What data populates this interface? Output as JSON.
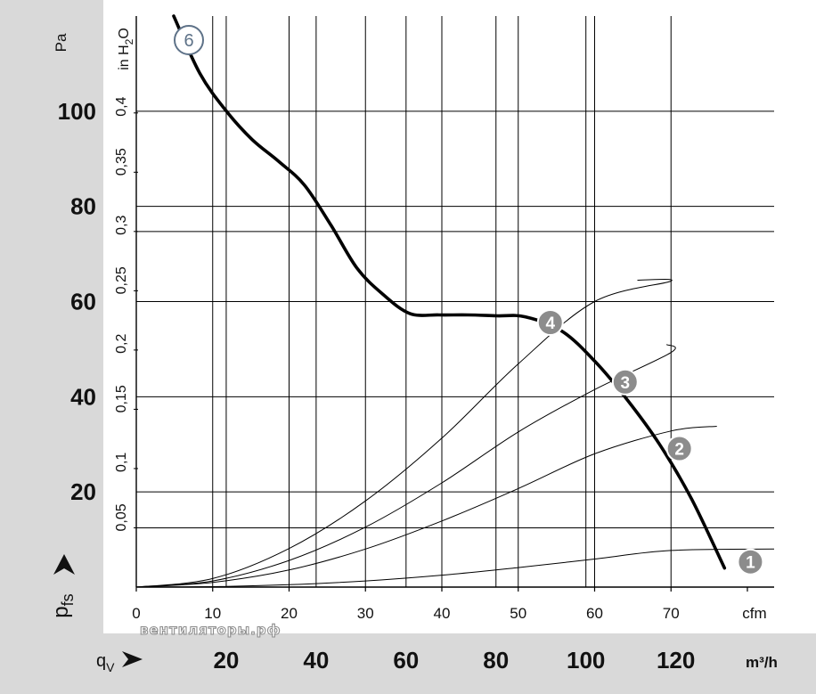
{
  "chart_data": {
    "type": "line",
    "x_axis": {
      "label": "cfm",
      "ticks": [
        "0",
        "10",
        "20",
        "30",
        "40",
        "50",
        "60",
        "70"
      ],
      "range": [
        0,
        83.5
      ],
      "secondary_label": "q_V",
      "secondary_unit": "m³/h",
      "secondary_ticks": [
        "20",
        "40",
        "60",
        "80",
        "100",
        "120"
      ]
    },
    "y_axis": {
      "label": "Pa",
      "unit": "in H₂O",
      "range": [
        0,
        120
      ],
      "ticks": [
        "20",
        "40",
        "60",
        "80",
        "100"
      ],
      "secondary_ticks": [
        "0,05",
        "0,1",
        "0,15",
        "0,2",
        "0,25",
        "0,3",
        "0,35",
        "0,4"
      ],
      "arrow_label": "p_fs"
    },
    "grid": true,
    "curve_label": "6",
    "fan_curve": {
      "x": [
        4.9,
        8.3,
        11.8,
        15.2,
        18.6,
        22.0,
        25.5,
        28.9,
        32.3,
        35.8,
        39.6,
        43.4,
        47.2,
        50.9,
        55.7,
        60.0,
        64.2,
        68.5,
        72.7,
        77.0
      ],
      "y": [
        120,
        108,
        100,
        94,
        89.5,
        84.5,
        76,
        67,
        61.5,
        57.5,
        57.2,
        57.2,
        57.0,
        56.8,
        53.8,
        47.5,
        39.5,
        30.0,
        18.5,
        4.0
      ]
    },
    "system_curves": [
      {
        "label": "1",
        "x": [
          0,
          10,
          20,
          30,
          40,
          50,
          60,
          70,
          83.5
        ],
        "y": [
          0,
          0.1,
          0.5,
          1.3,
          2.5,
          4.1,
          5.9,
          7.7,
          8.0
        ]
      },
      {
        "label": "2",
        "x": [
          0,
          10,
          20,
          30,
          40,
          50,
          60,
          70,
          76.0
        ],
        "y": [
          0,
          1.0,
          3.6,
          8.0,
          13.9,
          20.7,
          28.0,
          32.8,
          33.8
        ]
      },
      {
        "label": "3",
        "x": [
          0,
          10,
          20,
          30,
          40,
          50,
          60,
          70,
          69.4
        ],
        "y": [
          0,
          1.3,
          5.6,
          12.6,
          21.9,
          32.6,
          41.5,
          49.3,
          51.0
        ]
      },
      {
        "label": "4",
        "x": [
          0,
          10,
          20,
          30,
          40,
          50,
          60,
          70,
          65.6
        ],
        "y": [
          0,
          1.8,
          8.1,
          18.1,
          31.3,
          46.9,
          60.0,
          64.3,
          64.5
        ]
      }
    ],
    "operating_points": [
      {
        "label": "1",
        "x": 80.4,
        "y": 5.3
      },
      {
        "label": "2",
        "x": 71.1,
        "y": 29.1
      },
      {
        "label": "3",
        "x": 64.0,
        "y": 43.1
      },
      {
        "label": "4",
        "x": 54.2,
        "y": 55.6
      }
    ]
  },
  "watermark": "вентиляторы.рф",
  "colors": {
    "panel": "#d9d9d9",
    "grid": "#000000",
    "fan_curve": "#000000",
    "point_fill": "#8c8c8c",
    "curve6_ring": "#5e7288"
  }
}
